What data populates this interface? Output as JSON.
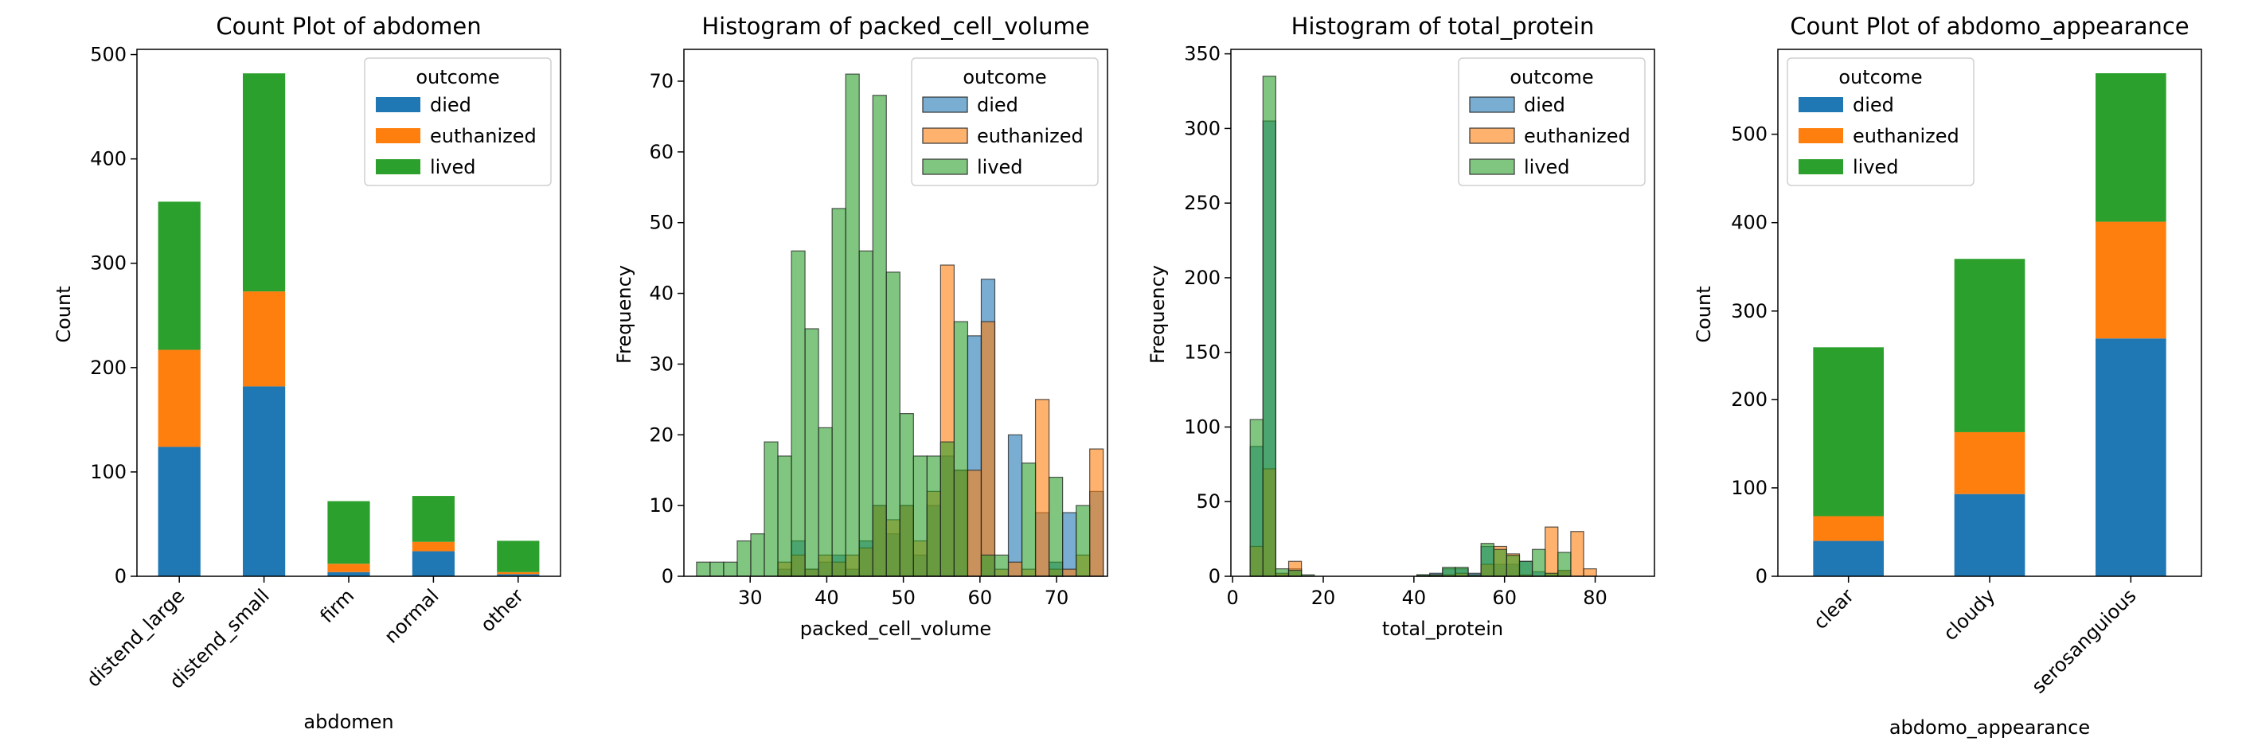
{
  "colors": {
    "died": "#1f77b4",
    "euthanized": "#ff7f0e",
    "lived": "#2ca02c"
  },
  "chart_data": [
    {
      "type": "bar",
      "stacked": true,
      "title": "Count Plot of abdomen",
      "xlabel": "abdomen",
      "ylabel": "Count",
      "ylim": [
        0,
        505
      ],
      "yticks": [
        0,
        100,
        200,
        300,
        400,
        500
      ],
      "categories": [
        "distend_large",
        "distend_small",
        "firm",
        "normal",
        "other"
      ],
      "legend": {
        "title": "outcome",
        "position": "top-right"
      },
      "series": [
        {
          "name": "died",
          "values": [
            124,
            182,
            4,
            24,
            2
          ]
        },
        {
          "name": "euthanized",
          "values": [
            93,
            91,
            8,
            9,
            2
          ]
        },
        {
          "name": "lived",
          "values": [
            142,
            209,
            60,
            44,
            30
          ]
        }
      ]
    },
    {
      "type": "histogram",
      "title": "Histogram of packed_cell_volume",
      "xlabel": "packed_cell_volume",
      "ylabel": "Frequency",
      "xlim": [
        21.35,
        76.65
      ],
      "ylim": [
        0,
        74.5
      ],
      "xticks": [
        30,
        40,
        50,
        60,
        70
      ],
      "yticks": [
        0,
        10,
        20,
        30,
        40,
        50,
        60,
        70
      ],
      "legend": {
        "title": "outcome",
        "position": "top-right"
      },
      "bins": {
        "start": 23,
        "width": 1.77,
        "count": 30
      },
      "series": [
        {
          "name": "died",
          "values": [
            0,
            0,
            0,
            0,
            0,
            0,
            1,
            5,
            1,
            2,
            3,
            1,
            5,
            10,
            6,
            10,
            3,
            10,
            17,
            15,
            34,
            42,
            0,
            20,
            0,
            9,
            2,
            9,
            0,
            12
          ]
        },
        {
          "name": "euthanized",
          "values": [
            0,
            0,
            0,
            0,
            0,
            0,
            2,
            3,
            1,
            3,
            2,
            3,
            4,
            10,
            8,
            10,
            5,
            12,
            44,
            15,
            15,
            36,
            1,
            2,
            1,
            25,
            1,
            1,
            3,
            18
          ]
        },
        {
          "name": "lived",
          "values": [
            2,
            2,
            2,
            5,
            6,
            19,
            17,
            46,
            35,
            21,
            52,
            71,
            46,
            68,
            43,
            23,
            17,
            17,
            19,
            36,
            0,
            3,
            3,
            0,
            16,
            0,
            14,
            0,
            10,
            0
          ]
        }
      ]
    },
    {
      "type": "histogram",
      "title": "Histogram of total_protein",
      "xlabel": "total_protein",
      "ylabel": "Frequency",
      "xlim": [
        -0.38,
        93.08
      ],
      "ylim": [
        0,
        353
      ],
      "xticks": [
        0,
        20,
        40,
        60,
        80
      ],
      "yticks": [
        0,
        50,
        100,
        150,
        200,
        250,
        300,
        350
      ],
      "legend": {
        "title": "outcome",
        "position": "top-right"
      },
      "bins": {
        "start": 3.87,
        "width": 2.83,
        "count": 30
      },
      "series": [
        {
          "name": "died",
          "values": [
            87,
            305,
            1,
            5,
            0,
            0,
            0,
            0,
            0,
            0,
            0,
            0,
            0,
            1,
            2,
            5,
            5,
            2,
            20,
            8,
            8,
            10,
            3,
            1,
            3,
            0,
            0,
            0,
            0,
            0
          ]
        },
        {
          "name": "euthanized",
          "values": [
            20,
            72,
            2,
            10,
            0,
            0,
            0,
            0,
            0,
            0,
            0,
            0,
            0,
            0,
            1,
            1,
            2,
            0,
            8,
            20,
            15,
            1,
            0,
            33,
            4,
            30,
            5,
            0,
            0,
            0
          ]
        },
        {
          "name": "lived",
          "values": [
            105,
            335,
            5,
            4,
            1,
            0,
            0,
            0,
            0,
            0,
            0,
            0,
            0,
            1,
            1,
            6,
            6,
            1,
            22,
            18,
            14,
            10,
            18,
            2,
            16,
            0,
            0,
            0,
            0,
            0
          ]
        }
      ]
    },
    {
      "type": "bar",
      "stacked": true,
      "title": "Count Plot of abdomo_appearance",
      "xlabel": "abdomo_appearance",
      "ylabel": "Count",
      "ylim": [
        0,
        596
      ],
      "yticks": [
        0,
        100,
        200,
        300,
        400,
        500
      ],
      "categories": [
        "clear",
        "cloudy",
        "serosanguious"
      ],
      "legend": {
        "title": "outcome",
        "position": "top-left"
      },
      "series": [
        {
          "name": "died",
          "values": [
            40,
            93,
            269
          ]
        },
        {
          "name": "euthanized",
          "values": [
            28,
            70,
            132
          ]
        },
        {
          "name": "lived",
          "values": [
            191,
            196,
            168
          ]
        }
      ]
    }
  ]
}
